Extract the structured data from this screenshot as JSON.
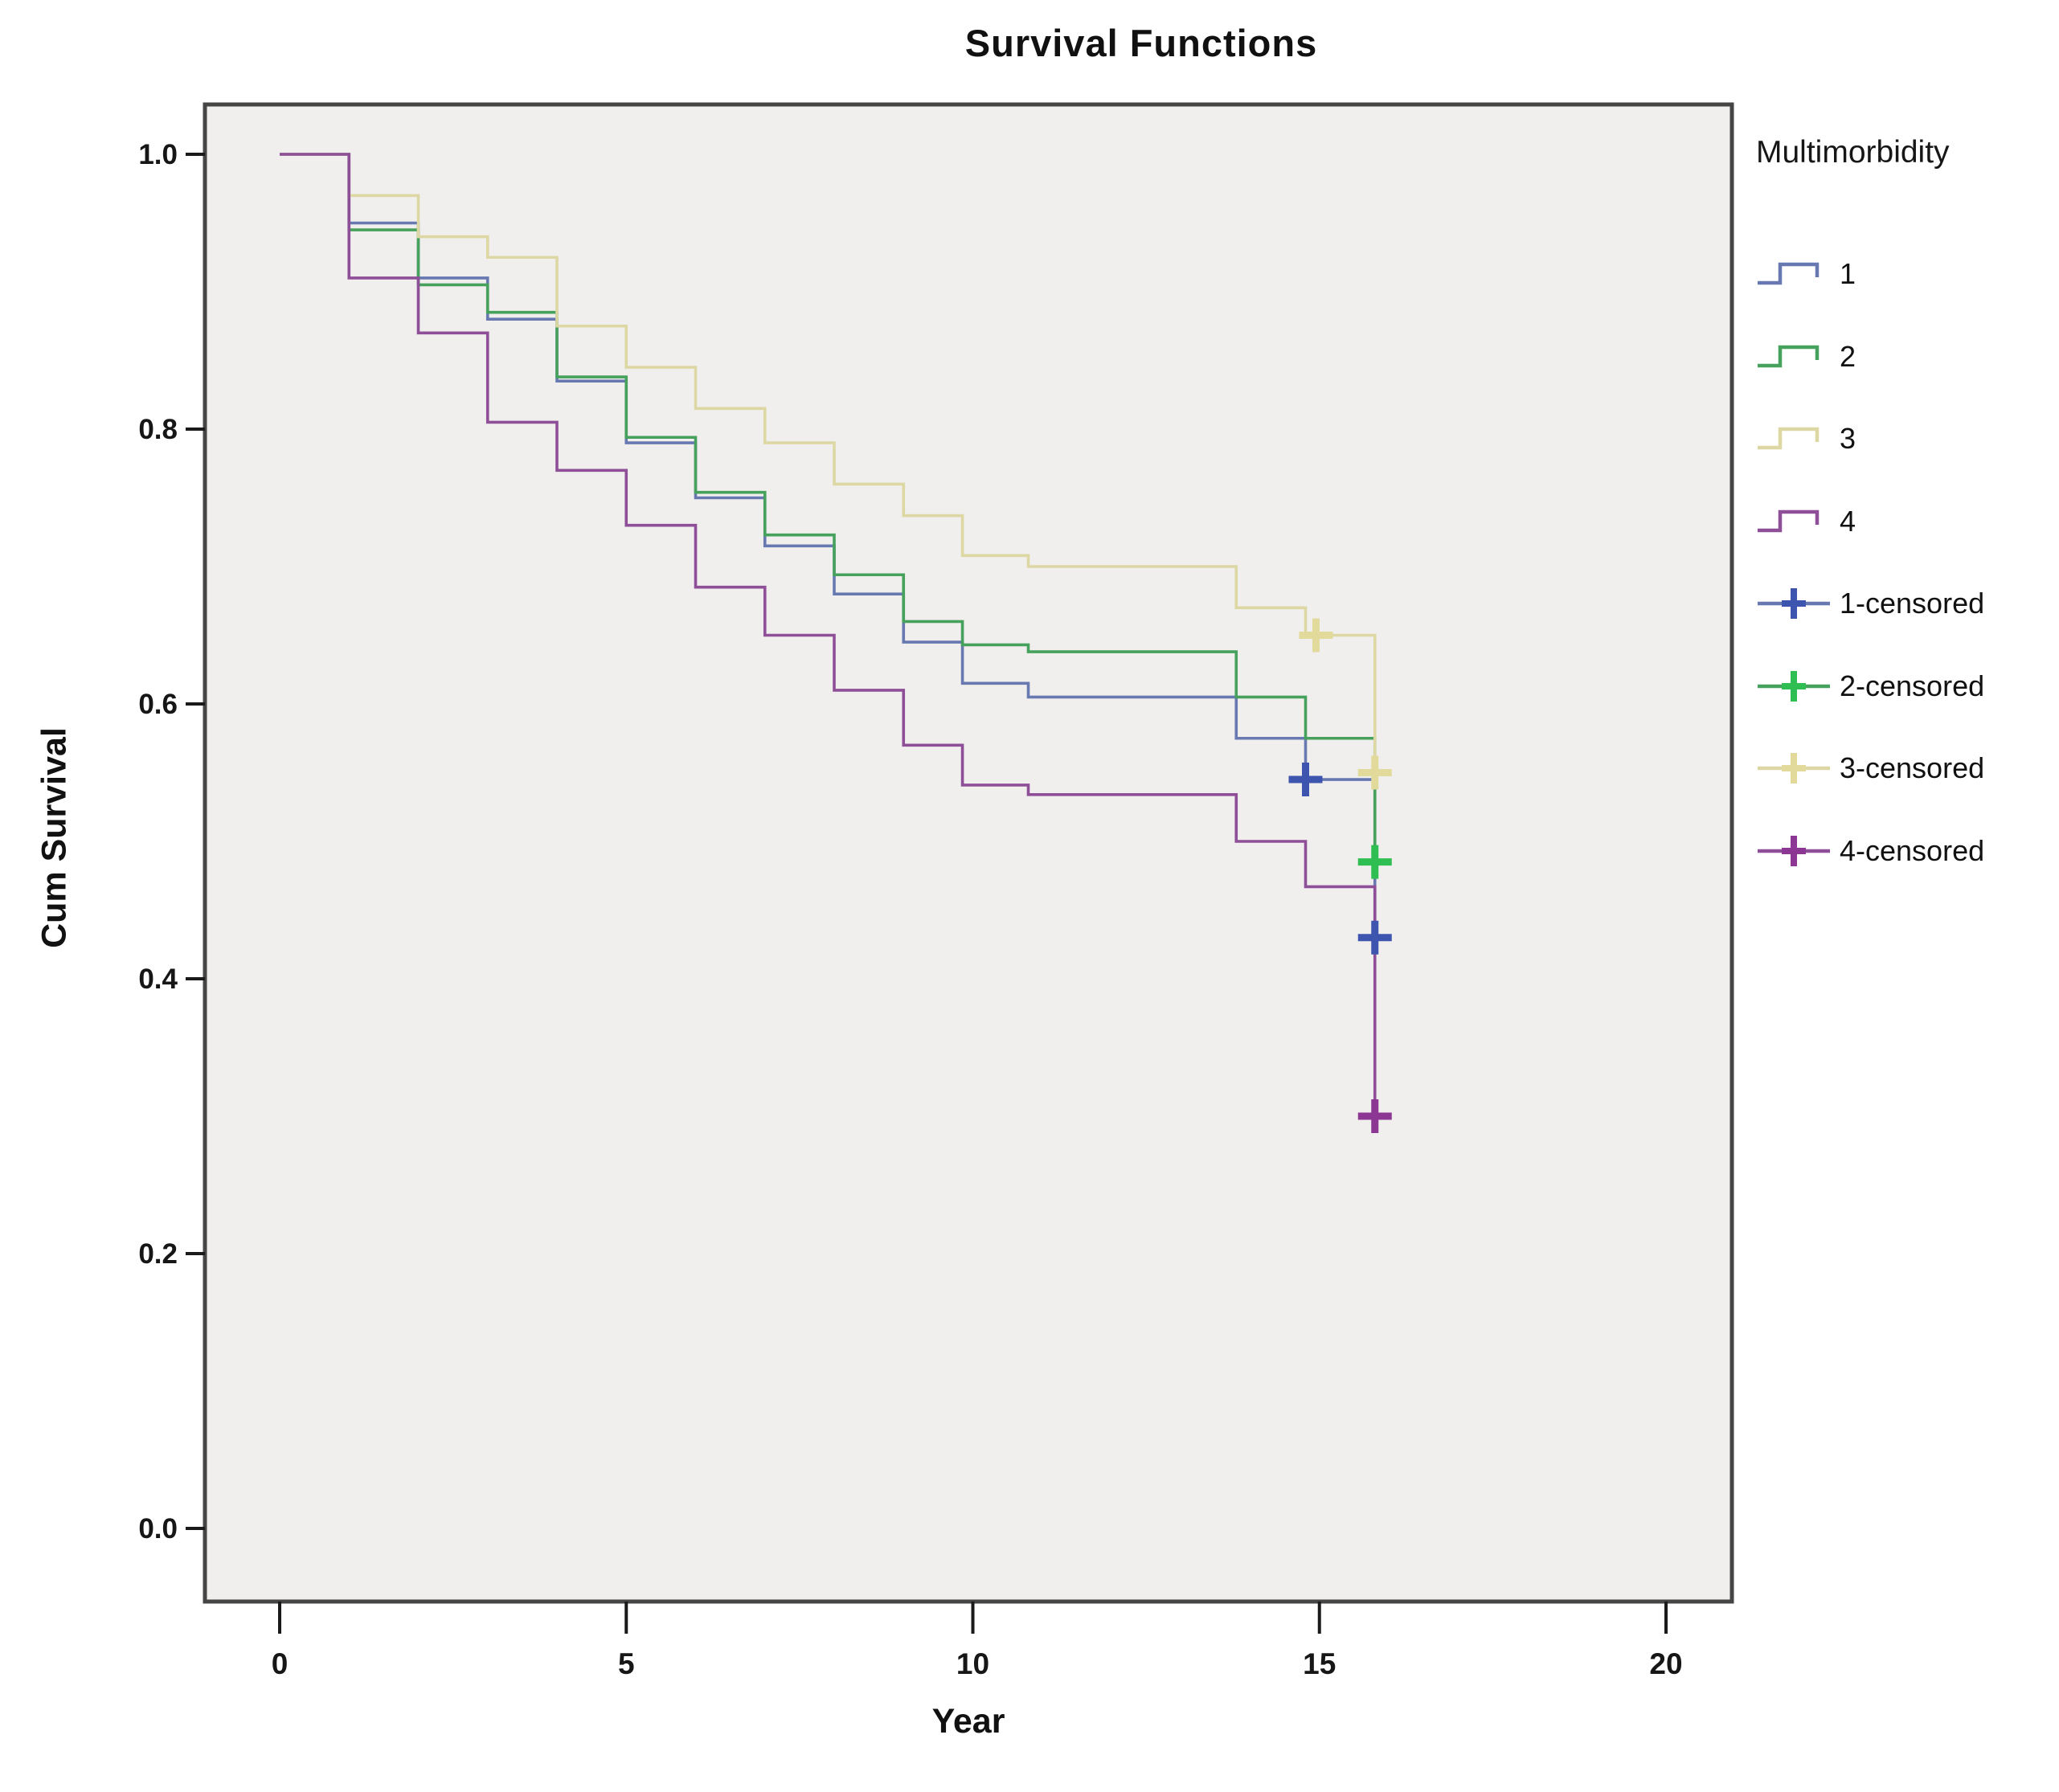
{
  "title": "Survival Functions",
  "axes": {
    "x_label": "Year",
    "y_label": "Cum Survival",
    "x_tick_labels": [
      "0",
      "5",
      "10",
      "15",
      "20"
    ],
    "x_tick_values": [
      0,
      5,
      10,
      15,
      20
    ],
    "y_tick_labels": [
      "1.0",
      "0.8",
      "0.6",
      "0.4",
      "0.2",
      "0.0"
    ],
    "y_tick_values": [
      1.0,
      0.8,
      0.6,
      0.4,
      0.2,
      0.0
    ]
  },
  "legend": {
    "title": "Multimorbidity",
    "items": [
      {
        "label": "1",
        "kind": "step",
        "color": "#6879B2"
      },
      {
        "label": "2",
        "kind": "step",
        "color": "#46A15C"
      },
      {
        "label": "3",
        "kind": "step",
        "color": "#DDD7A4"
      },
      {
        "label": "4",
        "kind": "step",
        "color": "#8E4F98"
      },
      {
        "label": "1-censored",
        "kind": "censor",
        "color": "#6879B2",
        "marker_color": "#3D55AE"
      },
      {
        "label": "2-censored",
        "kind": "censor",
        "color": "#46A15C",
        "marker_color": "#2FBE52"
      },
      {
        "label": "3-censored",
        "kind": "censor",
        "color": "#DDD7A4",
        "marker_color": "#E2DA9B"
      },
      {
        "label": "4-censored",
        "kind": "censor",
        "color": "#8E4F98",
        "marker_color": "#8C3793"
      }
    ]
  },
  "chart_data": {
    "type": "line",
    "subtype": "kaplan-meier-step",
    "title": "Survival Functions",
    "xlabel": "Year",
    "ylabel": "Cum Survival",
    "xlim": [
      -1.1,
      20.9
    ],
    "ylim": [
      -0.05,
      1.04
    ],
    "x_ticks": [
      0,
      5,
      10,
      15,
      20
    ],
    "y_ticks": [
      0.0,
      0.2,
      0.4,
      0.6,
      0.8,
      1.0
    ],
    "grid": false,
    "legend_position": "right",
    "plot_bg": "#F0EFED",
    "frame_color": "#454545",
    "series": [
      {
        "name": "1",
        "color": "#6879B2",
        "censor_color": "#3D55AE",
        "x": [
          0,
          1,
          2,
          3,
          4,
          5,
          6,
          7,
          8,
          9,
          9.85,
          10.8,
          13.8,
          14.8,
          15.8
        ],
        "y": [
          1.0,
          0.95,
          0.91,
          0.88,
          0.835,
          0.79,
          0.75,
          0.715,
          0.68,
          0.645,
          0.615,
          0.605,
          0.575,
          0.545,
          0.43
        ],
        "censored": [
          [
            14.8,
            0.545
          ],
          [
            15.8,
            0.43
          ]
        ]
      },
      {
        "name": "2",
        "color": "#46A15C",
        "censor_color": "#2FBE52",
        "x": [
          0,
          1,
          2,
          3,
          4,
          5,
          6,
          7,
          8,
          9,
          9.85,
          10.8,
          13.8,
          14.8,
          15.8
        ],
        "y": [
          1.0,
          0.945,
          0.905,
          0.885,
          0.838,
          0.794,
          0.754,
          0.723,
          0.694,
          0.66,
          0.643,
          0.638,
          0.605,
          0.575,
          0.485
        ],
        "censored": [
          [
            15.8,
            0.485
          ]
        ]
      },
      {
        "name": "3",
        "color": "#DDD7A4",
        "censor_color": "#E2DA9B",
        "x": [
          0,
          1,
          2,
          3,
          4,
          5,
          6,
          7,
          8,
          9,
          9.85,
          10.8,
          13.8,
          14.8,
          15.8
        ],
        "y": [
          1.0,
          0.97,
          0.94,
          0.925,
          0.875,
          0.845,
          0.815,
          0.79,
          0.76,
          0.737,
          0.708,
          0.7,
          0.67,
          0.65,
          0.55
        ],
        "censored": [
          [
            14.95,
            0.65
          ],
          [
            15.8,
            0.55
          ]
        ]
      },
      {
        "name": "4",
        "color": "#8E4F98",
        "censor_color": "#8C3793",
        "x": [
          0,
          1,
          2,
          3,
          4,
          5,
          6,
          7,
          8,
          9,
          9.85,
          10.8,
          13.8,
          14.8,
          15.8
        ],
        "y": [
          1.0,
          0.91,
          0.87,
          0.805,
          0.77,
          0.73,
          0.685,
          0.65,
          0.61,
          0.57,
          0.541,
          0.534,
          0.5,
          0.467,
          0.3
        ],
        "censored": [
          [
            15.8,
            0.3
          ]
        ]
      }
    ]
  }
}
